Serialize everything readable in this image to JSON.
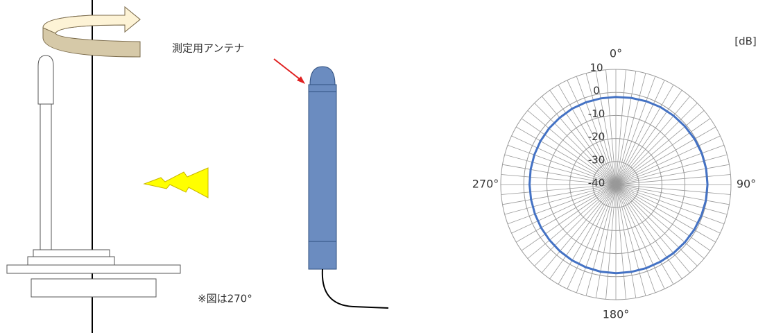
{
  "labels": {
    "antenna": "測定用アンテナ",
    "note": "※図は270°"
  },
  "chart_data": {
    "type": "polar",
    "unit": "[dB]",
    "x": [
      0,
      10,
      20,
      30,
      40,
      50,
      60,
      70,
      80,
      90,
      100,
      110,
      120,
      130,
      140,
      150,
      160,
      170,
      180,
      190,
      200,
      210,
      220,
      230,
      240,
      250,
      260,
      270,
      280,
      290,
      300,
      310,
      320,
      330,
      340,
      350
    ],
    "values": [
      -2,
      -1.8,
      -1.5,
      -1.2,
      -1,
      -0.8,
      -0.5,
      -0.3,
      -0.2,
      -0.2,
      -0.3,
      -0.5,
      -0.7,
      -0.9,
      -1.1,
      -1.3,
      -1.4,
      -1.5,
      -1.5,
      -1.6,
      -1.8,
      -2,
      -2.2,
      -2.4,
      -2.5,
      -2.6,
      -2.6,
      -2.5,
      -2.4,
      -2.3,
      -2.2,
      -2.1,
      -2.1,
      -2,
      -2,
      -2
    ],
    "color": "#4472c4",
    "ylim": [
      -40,
      10
    ],
    "yticks": [
      10,
      0,
      -10,
      -20,
      -30,
      -40
    ],
    "xticks": [
      {
        "value": 0,
        "label": "0°"
      },
      {
        "value": 90,
        "label": "90°"
      },
      {
        "value": 180,
        "label": "180°"
      },
      {
        "value": 270,
        "label": "270°"
      }
    ]
  }
}
